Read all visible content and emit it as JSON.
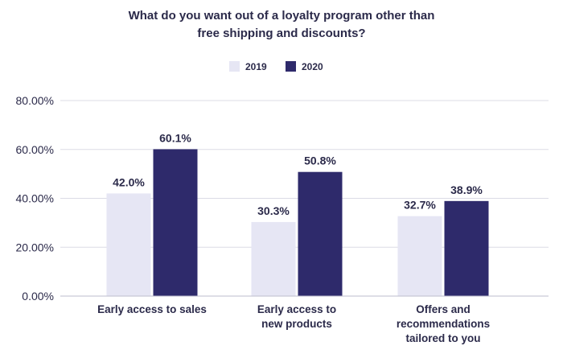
{
  "chart_data": {
    "type": "bar",
    "title_lines": [
      "What do you want out of a loyalty program other than",
      "free shipping and discounts?"
    ],
    "categories": [
      [
        "Early access to sales"
      ],
      [
        "Early access to",
        "new products"
      ],
      [
        "Offers and",
        "recommendations",
        "tailored to you"
      ]
    ],
    "series": [
      {
        "name": "2019",
        "color": "#e6e6f4",
        "values": [
          42.0,
          30.3,
          32.7
        ],
        "labels": [
          "42.0%",
          "30.3%",
          "32.7%"
        ]
      },
      {
        "name": "2020",
        "color": "#2e2a6b",
        "values": [
          60.1,
          50.8,
          38.9
        ],
        "labels": [
          "60.1%",
          "50.8%",
          "38.9%"
        ]
      }
    ],
    "ylim": [
      0,
      80
    ],
    "yticks": [
      "0.00%",
      "20.00%",
      "40.00%",
      "60.00%",
      "80.00%"
    ],
    "ytick_values": [
      0,
      20,
      40,
      60,
      80
    ],
    "grid": true,
    "legend_position": "top-center"
  }
}
